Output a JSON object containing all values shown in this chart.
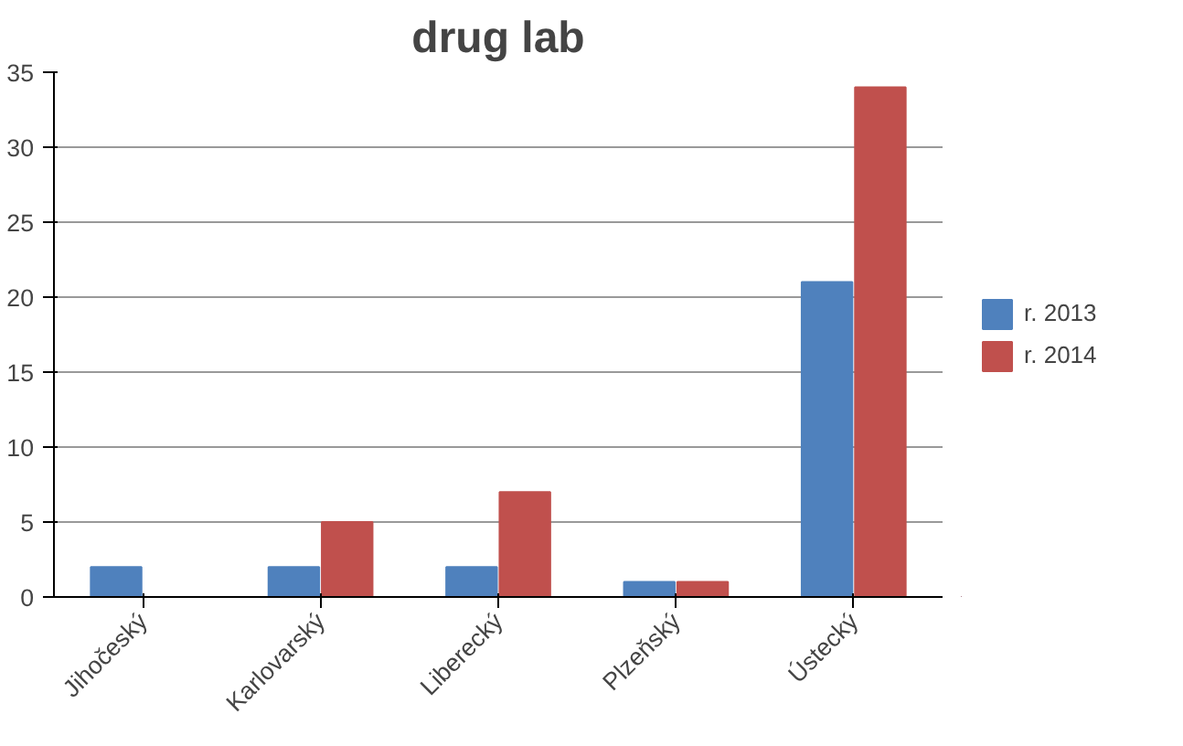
{
  "chart_data": {
    "type": "bar",
    "title": "drug lab",
    "categories": [
      "Jihočeský",
      "Karlovarský",
      "Liberecký",
      "Plzeňský",
      "Ústecký"
    ],
    "series": [
      {
        "name": "r. 2013",
        "color": "#4f81bd",
        "values": [
          2,
          2,
          2,
          1,
          21
        ]
      },
      {
        "name": "r. 2014",
        "color": "#c0504d",
        "values": [
          0,
          5,
          7,
          1,
          34
        ]
      }
    ],
    "ylim": [
      0,
      35
    ],
    "yticks": [
      0,
      5,
      10,
      15,
      20,
      25,
      30,
      35
    ],
    "grid": "y",
    "legend": "right"
  }
}
